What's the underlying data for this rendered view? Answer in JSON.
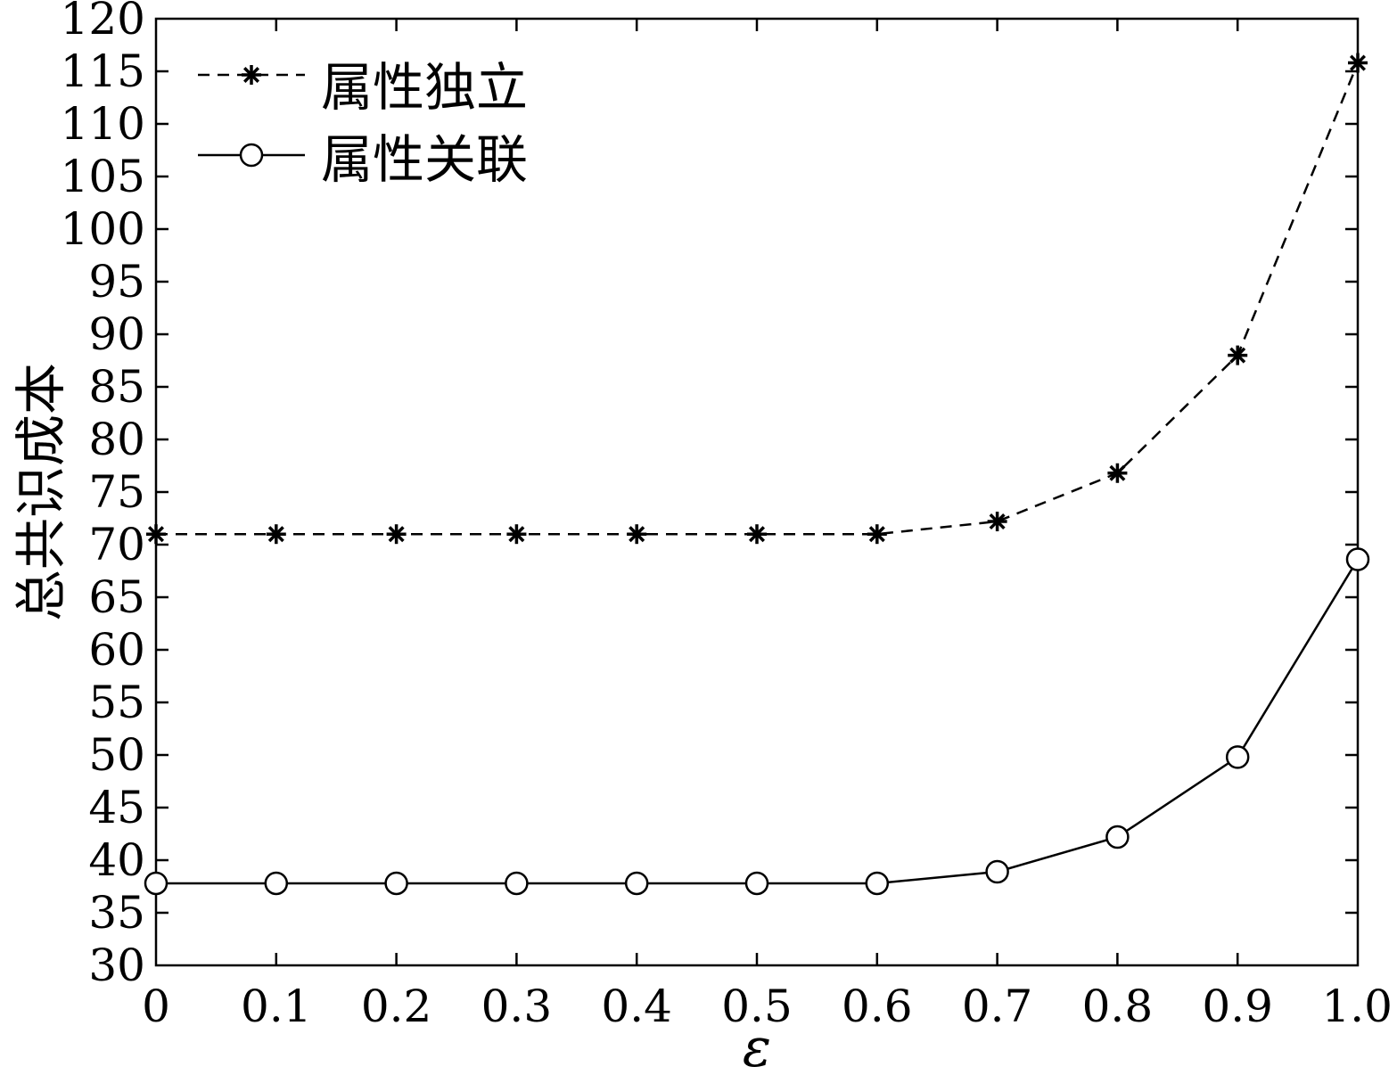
{
  "chart_data": {
    "type": "line",
    "x": [
      0,
      0.1,
      0.2,
      0.3,
      0.4,
      0.5,
      0.6,
      0.7,
      0.8,
      0.9,
      1.0
    ],
    "x_tick_labels": [
      "0",
      "0.1",
      "0.2",
      "0.3",
      "0.4",
      "0.5",
      "0.6",
      "0.7",
      "0.8",
      "0.9",
      "1.0"
    ],
    "y_ticks": [
      30,
      35,
      40,
      45,
      50,
      55,
      60,
      65,
      70,
      75,
      80,
      85,
      90,
      95,
      100,
      105,
      110,
      115,
      120
    ],
    "xlim": [
      0,
      1.0
    ],
    "ylim": [
      30,
      120
    ],
    "xlabel": "ε",
    "ylabel": "总共识成本",
    "title": "",
    "grid": false,
    "legend_position": "top-left",
    "series": [
      {
        "name": "属性独立",
        "line_style": "dashed",
        "marker": "asterisk",
        "color": "#000000",
        "values": [
          71,
          71,
          71,
          71,
          71,
          71,
          71,
          72.2,
          76.8,
          88,
          115.8
        ]
      },
      {
        "name": "属性关联",
        "line_style": "solid",
        "marker": "circle",
        "color": "#000000",
        "values": [
          37.8,
          37.8,
          37.8,
          37.8,
          37.8,
          37.8,
          37.8,
          38.9,
          42.2,
          49.8,
          68.6
        ]
      }
    ]
  }
}
